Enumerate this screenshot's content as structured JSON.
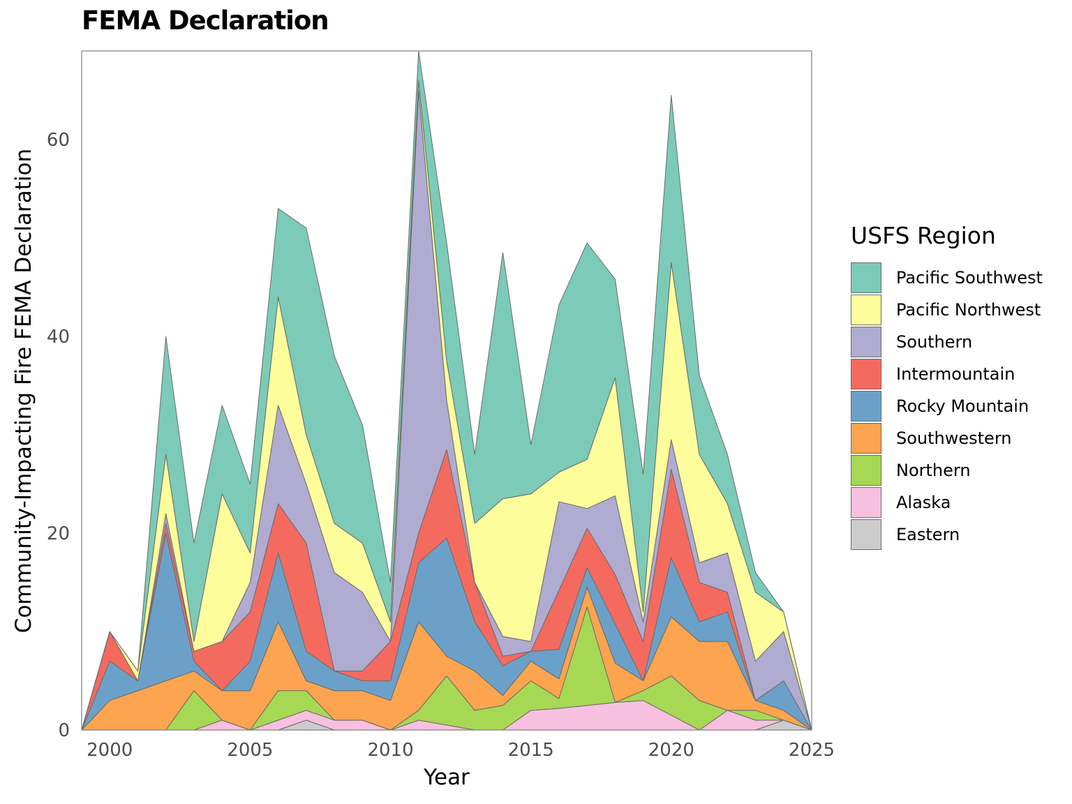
{
  "chart_data": {
    "type": "area",
    "title": "FEMA Declaration",
    "xlabel": "Year",
    "ylabel": "Community-Impacting Fire FEMA Declaration",
    "xlim": [
      1999,
      2025
    ],
    "ylim": [
      0,
      69
    ],
    "x_ticks": [
      2000,
      2005,
      2010,
      2015,
      2020,
      2025
    ],
    "y_ticks": [
      0,
      20,
      40,
      60
    ],
    "grid": false,
    "stacked": true,
    "legend_title": "USFS Region",
    "legend_position": "right",
    "x": [
      1999,
      2000,
      2001,
      2002,
      2003,
      2004,
      2005,
      2006,
      2007,
      2008,
      2009,
      2010,
      2011,
      2012,
      2013,
      2014,
      2015,
      2016,
      2017,
      2018,
      2019,
      2020,
      2021,
      2022,
      2023,
      2024,
      2025
    ],
    "series": [
      {
        "name": "Eastern",
        "color": "#cccccc",
        "values": [
          0,
          0,
          0,
          0,
          0,
          0,
          0,
          0,
          1,
          0,
          0,
          0,
          0,
          0,
          0,
          0,
          0,
          0,
          0,
          0,
          0,
          0,
          0,
          0,
          0,
          1,
          0
        ]
      },
      {
        "name": "Alaska",
        "color": "#f7c0df",
        "values": [
          0,
          0,
          0,
          0,
          0,
          1,
          0,
          1,
          1,
          1,
          1,
          0,
          1,
          0.5,
          0,
          0,
          2,
          2.2,
          2.5,
          2.8,
          3,
          1.5,
          0,
          2,
          1,
          0,
          0
        ]
      },
      {
        "name": "Northern",
        "color": "#a6d854",
        "values": [
          0,
          0,
          0,
          0,
          4,
          0,
          0,
          3,
          2,
          0,
          0,
          0,
          1,
          5,
          2,
          2.5,
          3,
          1,
          10,
          0,
          1,
          4,
          3,
          0,
          1,
          0,
          0
        ]
      },
      {
        "name": "Southwestern",
        "color": "#fca44f",
        "values": [
          0,
          3,
          4,
          5,
          2,
          3,
          4,
          7,
          1,
          3,
          3,
          3,
          9,
          2,
          4,
          1,
          2,
          2,
          2,
          4,
          1,
          6,
          6,
          7,
          1,
          1,
          0
        ]
      },
      {
        "name": "Rocky Mountain",
        "color": "#6ba1c8",
        "values": [
          0,
          4,
          1,
          15,
          1,
          0,
          3,
          7,
          3,
          2,
          1,
          2,
          6,
          12,
          5,
          3,
          1,
          3,
          2,
          4,
          0,
          6,
          2,
          3,
          0,
          3,
          0
        ]
      },
      {
        "name": "Intermountain",
        "color": "#f46a5f",
        "values": [
          0,
          3,
          0,
          1,
          1,
          5,
          5,
          5,
          11,
          0,
          1,
          4,
          3,
          9,
          4,
          1,
          0,
          6,
          4,
          5,
          4,
          9,
          4,
          2,
          0,
          0,
          0
        ]
      },
      {
        "name": "Southern",
        "color": "#b0abd0",
        "values": [
          0,
          0,
          0,
          1,
          0,
          0,
          3,
          10,
          6,
          10,
          8,
          0,
          45,
          5,
          0,
          2,
          1,
          9,
          2,
          8,
          2,
          3,
          2,
          4,
          4,
          5,
          0
        ]
      },
      {
        "name": "Pacific Northwest",
        "color": "#fdfd9c",
        "values": [
          0,
          0,
          1,
          6,
          1,
          15,
          3,
          11,
          5,
          5,
          5,
          2,
          1,
          4,
          6,
          14,
          15,
          3,
          5,
          12,
          1,
          18,
          11,
          5,
          7,
          2,
          0
        ]
      },
      {
        "name": "Pacific Southwest",
        "color": "#7ccab8",
        "values": [
          0,
          0,
          0,
          12,
          10,
          9,
          7,
          9,
          21,
          17,
          12,
          4,
          3,
          12,
          7,
          25,
          5,
          17,
          22,
          10,
          14,
          17,
          8,
          5,
          2,
          0,
          0
        ]
      }
    ]
  },
  "legend_order": [
    "Pacific Southwest",
    "Pacific Northwest",
    "Southern",
    "Intermountain",
    "Rocky Mountain",
    "Southwestern",
    "Northern",
    "Alaska",
    "Eastern"
  ]
}
